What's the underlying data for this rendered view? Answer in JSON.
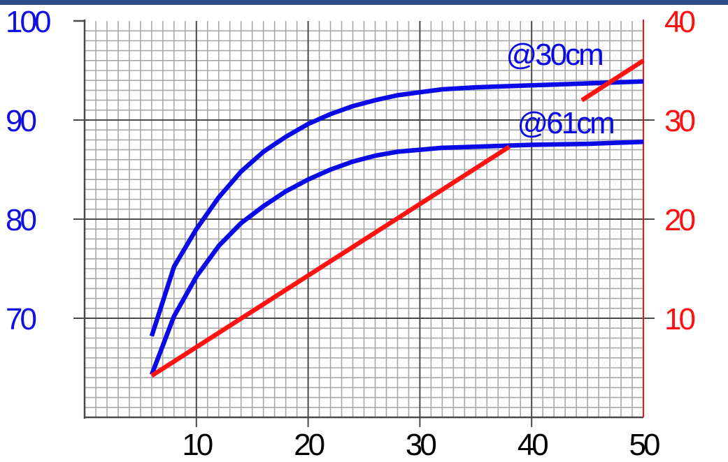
{
  "colors": {
    "top_bar": "#2f4d86",
    "left_axis": "#1010e0",
    "right_axis": "#ff1010",
    "grid_minor": "#a8a8a8",
    "grid_major": "#4a4a4a",
    "blue_series": "#0a0ae6",
    "red_series": "#ff1212"
  },
  "chart_data": {
    "type": "line",
    "title": "",
    "xlabel": "",
    "ylabel": "",
    "y2label": "",
    "xlim": [
      0,
      50
    ],
    "ylim": [
      60,
      100
    ],
    "y2lim": [
      0,
      40
    ],
    "x_ticks": [
      "10",
      "20",
      "30",
      "40",
      "50"
    ],
    "y_ticks": [
      "70",
      "80",
      "90",
      "100"
    ],
    "y2_ticks": [
      "10",
      "20",
      "30",
      "40"
    ],
    "grid": true,
    "series": [
      {
        "axis": "left",
        "color": "blue",
        "x": [
          6,
          8,
          10,
          12,
          14,
          16,
          18,
          20,
          22,
          24,
          26,
          28,
          30,
          32,
          35,
          40,
          45,
          50
        ],
        "y": [
          68.2,
          75.2,
          79.0,
          82.2,
          84.8,
          86.8,
          88.3,
          89.6,
          90.6,
          91.4,
          92.0,
          92.5,
          92.8,
          93.1,
          93.3,
          93.5,
          93.7,
          93.9
        ]
      },
      {
        "axis": "left",
        "color": "blue",
        "x": [
          6,
          8,
          10,
          12,
          14,
          16,
          18,
          20,
          22,
          24,
          26,
          28,
          30,
          32,
          35,
          40,
          45,
          50
        ],
        "y": [
          64.3,
          70.2,
          74.2,
          77.3,
          79.6,
          81.3,
          82.8,
          84.0,
          85.0,
          85.8,
          86.4,
          86.8,
          87.0,
          87.2,
          87.3,
          87.5,
          87.6,
          87.8
        ]
      },
      {
        "axis": "right",
        "color": "red",
        "x": [
          6,
          38
        ],
        "y": [
          4.2,
          27.3
        ]
      },
      {
        "axis": "right",
        "color": "red",
        "x": [
          44.5,
          50
        ],
        "y": [
          32.0,
          36.0
        ]
      }
    ],
    "annotations": [
      {
        "text": "@30cm",
        "x": 42,
        "y": 96.7
      },
      {
        "text": "@61cm",
        "x": 43,
        "y": 89.8
      }
    ]
  }
}
